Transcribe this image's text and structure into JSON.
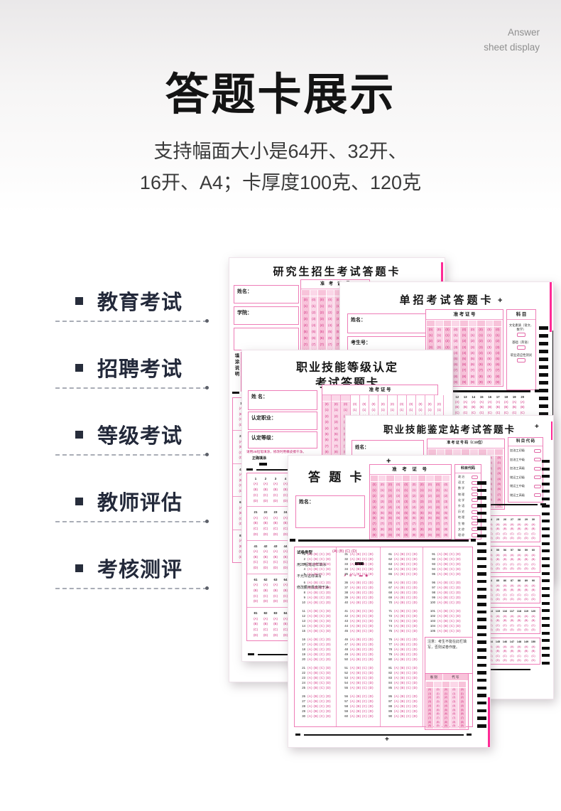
{
  "header": {
    "corner_line1": "Answer",
    "corner_line2": "sheet display",
    "title": "答题卡展示",
    "subtitle_line1": "支持幅面大小是64开、32开、",
    "subtitle_line2": "16开、A4；卡厚度100克、120克"
  },
  "menu": {
    "items": [
      {
        "label": "教育考试"
      },
      {
        "label": "招聘考试"
      },
      {
        "label": "等级考试"
      },
      {
        "label": "教师评估"
      },
      {
        "label": "考核测评"
      }
    ]
  },
  "digits": [
    0,
    1,
    2,
    3,
    4,
    5,
    6,
    7,
    8,
    9
  ],
  "options": [
    "A",
    "B",
    "C",
    "D"
  ],
  "sheets": {
    "yjs": {
      "title": "研究生招生考试答题卡",
      "name_label": "姓名：",
      "college_label": "学院：",
      "instr_label": "填涂说明",
      "instr_lines": [
        "1、书写部分的汉字、数字使用黑色字迹签字笔书写。",
        "2、选择题部分使用2B铅笔填涂，修改使用橡皮擦干净，保持答题卡整洁、平整，严禁折叠卡纸。",
        "3、正确填涂　错误填涂"
      ],
      "grid_header": "准　考　证　号"
    },
    "dz": {
      "title": "单招考试答题卡",
      "plus": "+",
      "name_label": "姓名：",
      "candidate_label": "考生号：",
      "grid_header": "准 考 证 号",
      "subject_header": "科 目",
      "subjects": [
        "文化素质（语文、数学）",
        "基础（英语）",
        "职业适应性测试"
      ],
      "answer_numbers": [
        12,
        13,
        14,
        15,
        16,
        17,
        18,
        19,
        20
      ]
    },
    "djrd": {
      "title_line1": "职业技能等级认定",
      "title_line2": "考试答题卡",
      "name_label": "姓 名：",
      "occupation_label": "认定职业：",
      "level_label": "认定等级：",
      "grid_header": "准 考 证 号",
      "note": "请用2B铅笔填涂，修改时用橡皮擦干净。",
      "correct_label": "正确填涂",
      "wrong_label": "错误填涂",
      "wrong_marks": "⊠ ✗",
      "blocks": [
        [
          1,
          2,
          3,
          4,
          5
        ],
        [
          21,
          22,
          23,
          24,
          25
        ],
        [
          41,
          42,
          43,
          44,
          45
        ],
        [
          61,
          62,
          63,
          64,
          65
        ],
        [
          81,
          82,
          83,
          84,
          85
        ]
      ]
    },
    "jdz": {
      "title": "职业技能鉴定站考试答题卡",
      "plus": "+",
      "name_label": "姓名：",
      "grid_header": "准 考 证 号 码（C10位）",
      "subject_header": "科 目 代 码",
      "subjects": [
        "加油工初级",
        "加油工中级",
        "加油工高级",
        "储运工初级",
        "储运工中级",
        "储运工高级"
      ],
      "blocks": [
        [
          23,
          24,
          25,
          26,
          27,
          28,
          29,
          30
        ],
        [
          53,
          54,
          55,
          56,
          57,
          58,
          59,
          60
        ],
        [
          83,
          84,
          85,
          86,
          87,
          88,
          89,
          90
        ],
        [
          113,
          114,
          115,
          116,
          117,
          118,
          119,
          120
        ],
        [
          143,
          144,
          145,
          146,
          147,
          148,
          149,
          150
        ]
      ]
    },
    "front": {
      "plus_top": "+",
      "plus_bottom": "+",
      "title": "答 题 卡",
      "name_label": "姓名：",
      "paper_type_label": "试卷类型",
      "paper_type_options": "(A) (B) (C) (D)",
      "fill_note": "用2B铅笔这样填涂",
      "wrong_note": "不允许这样填写",
      "wrong_marks": "✗ ⊘ ◐ ▬ ◉",
      "erase_note": "修改要用橡皮擦干净",
      "grid_header": "准 考 证 号",
      "subject_header": "科目代码",
      "subjects": [
        "政 治",
        "语 文",
        "数 学",
        "物 理",
        "化 学",
        "外 语",
        "历 史",
        "地 理",
        "生 物",
        "文 综",
        "理 综"
      ],
      "notice": "注意：考生不能在此栏填写，否则试卷作废。",
      "code_header_left": "省 别",
      "code_header_right": "代 号",
      "columns": [
        [
          1,
          2,
          3,
          4,
          5,
          6,
          7,
          8,
          9,
          10,
          11,
          12,
          13,
          14,
          15,
          16,
          17,
          18,
          19,
          20,
          21,
          22,
          23,
          24,
          25,
          26,
          27,
          28,
          29,
          30
        ],
        [
          31,
          32,
          33,
          34,
          35,
          36,
          37,
          38,
          39,
          40,
          41,
          42,
          43,
          44,
          45,
          46,
          47,
          48,
          49,
          50,
          51,
          52,
          53,
          54,
          55,
          56,
          57,
          58,
          59,
          60
        ],
        [
          61,
          62,
          63,
          64,
          65,
          66,
          67,
          68,
          69,
          70,
          71,
          72,
          73,
          74,
          75,
          76,
          77,
          78,
          79,
          80,
          81,
          82,
          83,
          84,
          85,
          86,
          87,
          88,
          89,
          90
        ],
        [
          91,
          92,
          93,
          94,
          95,
          96,
          97,
          98,
          99,
          100,
          101,
          102,
          103,
          104,
          105
        ]
      ]
    }
  }
}
